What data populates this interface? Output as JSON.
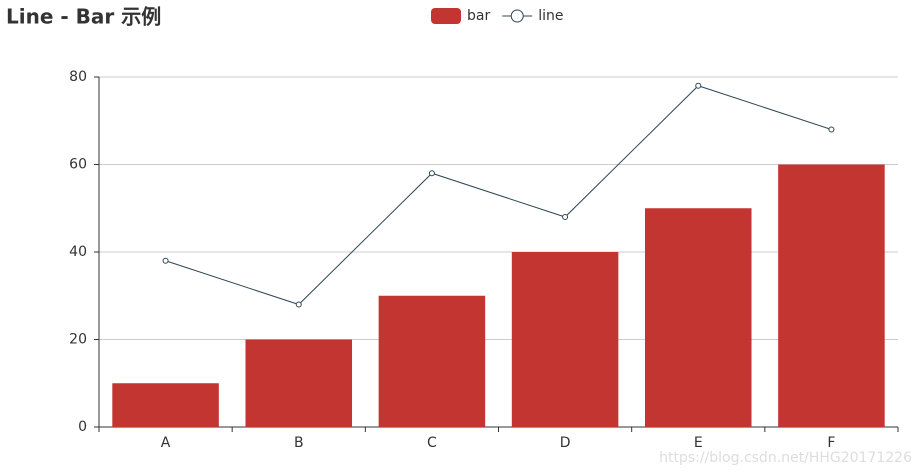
{
  "chart_data": {
    "type": "bar",
    "title": "Line - Bar 示例",
    "categories": [
      "A",
      "B",
      "C",
      "D",
      "E",
      "F"
    ],
    "series": [
      {
        "name": "bar",
        "type": "bar",
        "color": "#c23531",
        "values": [
          10,
          20,
          30,
          40,
          50,
          60
        ]
      },
      {
        "name": "line",
        "type": "line",
        "color": "#2f4554",
        "values": [
          38,
          28,
          58,
          48,
          78,
          68
        ]
      }
    ],
    "ylim": [
      0,
      80
    ],
    "yticks": [
      0,
      20,
      40,
      60,
      80
    ],
    "grid": true,
    "legend": "top",
    "watermark": "https://blog.csdn.net/HHG20171226"
  }
}
